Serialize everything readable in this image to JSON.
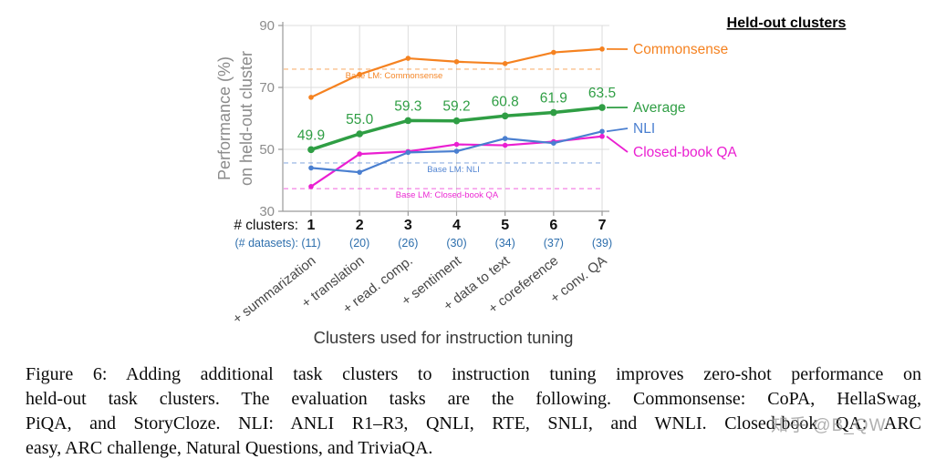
{
  "figure": {
    "legend_title": "Held-out clusters",
    "x_axis_title": "Clusters used for instruction tuning",
    "y_axis_title_line1": "Performance (%)",
    "y_axis_title_line2": "on held-out cluster",
    "x_tick_prefix_label": "# clusters:",
    "datasets_prefix_label": "(# datasets):",
    "datasets_color": "#2e6fad"
  },
  "chart_data": {
    "type": "line",
    "title": "",
    "xlabel": "Clusters used for instruction tuning",
    "ylabel": "Performance (%) on held-out cluster",
    "ylim": [
      30,
      90
    ],
    "y_ticks": [
      90,
      70,
      50,
      30
    ],
    "x_clusters": [
      "1",
      "2",
      "3",
      "4",
      "5",
      "6",
      "7"
    ],
    "dataset_counts": [
      "(11)",
      "(20)",
      "(26)",
      "(30)",
      "(34)",
      "(37)",
      "(39)"
    ],
    "cluster_labels": [
      "+ summarization",
      "+ translation",
      "+ read. comp.",
      "+ sentiment",
      "+ data to text",
      "+ coreference",
      "+ conv. QA"
    ],
    "legend_position": "right",
    "grid": "on",
    "series": [
      {
        "name": "Commonsense",
        "color": "#f58220",
        "values": [
          66.8,
          74.2,
          79.4,
          78.3,
          77.7,
          81.3,
          82.4
        ]
      },
      {
        "name": "Average",
        "color": "#2f9e44",
        "values": [
          49.9,
          55.0,
          59.3,
          59.2,
          60.8,
          61.9,
          63.5
        ],
        "labels": [
          "49.9",
          "55.0",
          "59.3",
          "59.2",
          "60.8",
          "61.9",
          "63.5"
        ]
      },
      {
        "name": "NLI",
        "color": "#4a7fd0",
        "values": [
          44.0,
          42.6,
          49.0,
          49.4,
          53.5,
          52.0,
          55.8
        ]
      },
      {
        "name": "Closed-book QA",
        "color": "#ea1fd1",
        "values": [
          38.0,
          48.5,
          49.3,
          51.6,
          51.3,
          52.5,
          54.2
        ]
      }
    ],
    "baselines": [
      {
        "label": "Base LM: Commonsense",
        "color": "#f58220",
        "value": 75.9
      },
      {
        "label": "Base LM: NLI",
        "color": "#4a7fd0",
        "value": 45.6
      },
      {
        "label": "Base LM: Closed-book QA",
        "color": "#ea1fd1",
        "value": 37.3
      }
    ]
  },
  "caption": {
    "lines": [
      "Figure 6: Adding additional task clusters to instruction tuning improves zero-shot performance on",
      "held-out task clusters. The evaluation tasks are the following. Commonsense: CoPA, HellaSwag,",
      "PiQA, and StoryCloze. NLI: ANLI R1–R3, QNLI, RTE, SNLI, and WNLI. Closed-book QA: ARC",
      "easy, ARC challenge, Natural Questions, and TriviaQA."
    ]
  },
  "watermark": "知乎 @B_QW"
}
